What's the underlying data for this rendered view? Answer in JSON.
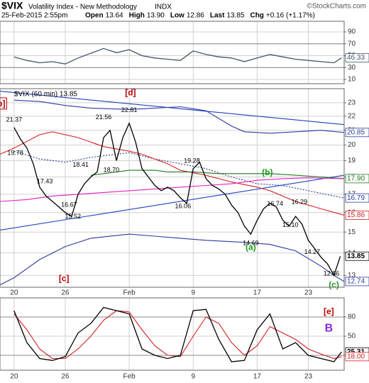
{
  "header": {
    "symbol": "$VIX",
    "title": "Volatility Index - New Methodology",
    "exchange": "INDX",
    "copyright": "©StockCharts.com",
    "date": "25-Feb-2015 2:55pm",
    "quote": [
      [
        "Open",
        "13.64"
      ],
      [
        "High",
        "13.90"
      ],
      [
        "Low",
        "12.86"
      ],
      [
        "Last",
        "13.85"
      ],
      [
        "Chg",
        "+0.16 (+1.17%)"
      ]
    ]
  },
  "chart_data": [
    {
      "type": "line",
      "xlim": [
        -1.1,
        25.8
      ],
      "ylim": [
        2.8,
        107.9
      ],
      "yticks": [
        90,
        70,
        50,
        30,
        10
      ],
      "guides": [
        70,
        30
      ],
      "grid": true,
      "series": [
        {
          "color": "#44546a",
          "x": [
            0,
            1,
            2,
            3,
            4,
            5,
            6,
            7,
            8,
            9,
            10,
            11,
            12,
            13,
            14,
            15,
            16,
            17,
            18,
            19,
            20,
            21,
            22,
            23,
            24,
            25,
            25.6
          ],
          "values": [
            48,
            42,
            38,
            40,
            36,
            46,
            54,
            62,
            55,
            60,
            50,
            46,
            44,
            42,
            58,
            52,
            48,
            46,
            40,
            46,
            52,
            48,
            44,
            42,
            40,
            38,
            46.33
          ]
        }
      ],
      "tags": [
        {
          "value": 46.33,
          "color": "#44546a"
        }
      ]
    },
    {
      "type": "line",
      "log": true,
      "legend": "$VIX (60 min) 13.85",
      "xlim": [
        -1.1,
        25.8
      ],
      "ylim": [
        12.5,
        24.1
      ],
      "yticks": [
        23,
        22,
        21,
        20,
        19,
        18,
        17,
        16,
        15,
        14,
        13
      ],
      "grid": true,
      "xticks": [
        {
          "value": 0,
          "label": "20"
        },
        {
          "value": 4,
          "label": "26"
        },
        {
          "value": 9,
          "label": "Feb"
        },
        {
          "value": 14,
          "label": "9"
        },
        {
          "value": 19,
          "label": "17"
        },
        {
          "value": 23,
          "label": "23"
        }
      ],
      "series": [
        {
          "color": "#1f3fbf",
          "x": [
            -1.1,
            25.8
          ],
          "values": [
            23.9,
            21.4
          ]
        },
        {
          "color": "#1f3fbf",
          "x": [
            -1.1,
            25.8
          ],
          "values": [
            15.1,
            18.1
          ]
        },
        {
          "color": "#2b3aa0",
          "x": [
            0,
            2,
            4,
            6,
            9,
            11,
            13,
            15,
            17,
            18,
            20,
            22,
            24,
            25.8
          ],
          "values": [
            23.2,
            23.1,
            22.8,
            22.6,
            22.5,
            22.6,
            22.7,
            22.4,
            21.3,
            20.9,
            20.8,
            20.9,
            21.0,
            20.85
          ]
        },
        {
          "color": "#2b3aa0",
          "x": [
            -1.1,
            0,
            2,
            4,
            6,
            9,
            11,
            13,
            15,
            18,
            20,
            22,
            24,
            25,
            25.8
          ],
          "values": [
            12.6,
            12.9,
            13.7,
            14.3,
            14.7,
            14.9,
            14.8,
            14.7,
            14.6,
            14.5,
            14.4,
            14.1,
            13.4,
            13.0,
            12.74
          ]
        },
        {
          "color": "#2b3aa0",
          "style": "dotted",
          "x": [
            0,
            2,
            4,
            6,
            9,
            11,
            13,
            15,
            17,
            19,
            21,
            23,
            25.8
          ],
          "values": [
            19.6,
            19.1,
            18.9,
            19.2,
            19.5,
            19.1,
            18.8,
            18.5,
            18.0,
            17.6,
            17.5,
            17.2,
            16.79
          ]
        },
        {
          "color": "#d62020",
          "x": [
            -1.1,
            0,
            2,
            3,
            5,
            7,
            9,
            10,
            12,
            13,
            15,
            17,
            19,
            20,
            22,
            24,
            25.8
          ],
          "values": [
            19.4,
            19.8,
            20.7,
            20.9,
            20.5,
            19.9,
            19.6,
            19.4,
            18.8,
            18.4,
            18.1,
            17.7,
            17.4,
            17.2,
            16.6,
            16.2,
            15.86
          ]
        },
        {
          "color": "#1c7a1c",
          "x": [
            6,
            7,
            9,
            11,
            12,
            14,
            16,
            18,
            20,
            22,
            24,
            25.8
          ],
          "values": [
            18.1,
            18.2,
            18.4,
            18.4,
            18.3,
            18.3,
            18.2,
            18.2,
            18.2,
            18.1,
            18.0,
            17.9
          ]
        },
        {
          "color": "#e020c0",
          "x": [
            -1.1,
            1,
            3,
            5,
            7,
            9,
            11,
            13,
            15,
            17,
            19,
            21,
            23,
            25.8
          ],
          "values": [
            16.6,
            16.7,
            16.9,
            17.0,
            17.1,
            17.2,
            17.3,
            17.4,
            17.5,
            17.6,
            17.8,
            17.9,
            17.95,
            17.9
          ]
        },
        {
          "color": "#000000",
          "x": [
            0,
            0.5,
            1,
            1.5,
            2,
            2.5,
            3,
            3.5,
            4,
            4.5,
            5,
            5.5,
            6,
            6.5,
            7,
            7.5,
            8,
            8.5,
            9,
            9.5,
            10,
            10.5,
            11,
            11.5,
            12,
            12.5,
            13,
            13.5,
            14,
            14.5,
            15,
            15.5,
            16,
            16.5,
            17,
            17.5,
            18,
            18.5,
            19,
            19.5,
            20,
            20.5,
            21,
            21.5,
            22,
            22.5,
            23,
            23.5,
            24,
            24.5,
            25,
            25.5
          ],
          "values": [
            21.2,
            20.4,
            19.8,
            18.8,
            17.4,
            16.9,
            16.6,
            16.3,
            16.0,
            15.8,
            17.0,
            17.6,
            18.0,
            18.3,
            20.5,
            21.0,
            19.0,
            20.5,
            21.5,
            20.2,
            18.5,
            18.0,
            17.5,
            17.2,
            17.4,
            17.2,
            16.8,
            16.5,
            18.5,
            18.9,
            17.9,
            17.5,
            17.3,
            17.0,
            16.4,
            16.0,
            15.3,
            14.9,
            15.6,
            16.2,
            16.5,
            16.3,
            15.6,
            15.3,
            15.8,
            15.4,
            14.6,
            14.2,
            13.8,
            13.5,
            13.0,
            13.85
          ]
        }
      ],
      "point_labels": [
        {
          "x": 0,
          "value": 21.37
        },
        {
          "x": 0.1,
          "value": 19.78
        },
        {
          "x": 7,
          "value": 21.56
        },
        {
          "x": 9,
          "value": 22.81
        },
        {
          "x": 5.2,
          "value": 18.41
        },
        {
          "x": 7.6,
          "value": {
            "value": 18.7,
            "label": "18.70"
          }
        },
        {
          "x": 2.4,
          "value": 17.43
        },
        {
          "x": 4.3,
          "value": 16.67
        },
        {
          "x": 4.6,
          "value": 15.52
        },
        {
          "x": 13.9,
          "value": 19.28
        },
        {
          "x": 13.2,
          "value": 16.06
        },
        {
          "x": 20.4,
          "value": 16.74
        },
        {
          "x": 22.3,
          "value": 16.29
        },
        {
          "x": 18.5,
          "value": 14.69
        },
        {
          "x": 21.6,
          "value": {
            "value": 15.1,
            "label": "15.10"
          }
        },
        {
          "x": 23.3,
          "value": 14.27
        },
        {
          "x": 24.8,
          "value": 12.86
        }
      ],
      "annotations": [
        {
          "text": "b]",
          "x": -1.0,
          "y": 22.9,
          "color": "#c00000",
          "box": true
        },
        {
          "text": "[d]",
          "x": 9.1,
          "y": 23.75,
          "color": "#c00000",
          "box": false
        },
        {
          "text": "[c]",
          "x": 3.9,
          "y": 12.85,
          "color": "#c00000",
          "box": false
        },
        {
          "text": "(b)",
          "x": 19.8,
          "y": 18.25,
          "color": "#1c9a1c",
          "box": false
        },
        {
          "text": "(a)",
          "x": 18.5,
          "y": 14.25,
          "color": "#1c9a1c",
          "box": false
        },
        {
          "text": "(c)",
          "x": 25.0,
          "y": 12.58,
          "color": "#1c9a1c",
          "box": false
        }
      ],
      "tags": [
        {
          "value": 20.85,
          "color": "#2b3aa0"
        },
        {
          "value": {
            "value": 17.9,
            "label": "17.90"
          },
          "color": "#1c7a1c"
        },
        {
          "value": 16.79,
          "color": "#2b3aa0"
        },
        {
          "value": 15.86,
          "color": "#d62020"
        },
        {
          "value": 13.85,
          "color": "#000000"
        },
        {
          "value": 12.74,
          "color": "#2b3aa0"
        }
      ]
    },
    {
      "type": "line",
      "xlim": [
        -1.1,
        25.8
      ],
      "ylim": [
        -3.3,
        110
      ],
      "yticks": [
        80,
        50,
        20
      ],
      "guides": [
        80,
        20
      ],
      "grid": true,
      "xticks": [
        {
          "value": 0,
          "label": "20"
        },
        {
          "value": 4,
          "label": "26"
        },
        {
          "value": 9,
          "label": "Feb"
        },
        {
          "value": 14,
          "label": "9"
        },
        {
          "value": 19,
          "label": "17"
        },
        {
          "value": 23,
          "label": "23"
        }
      ],
      "series": [
        {
          "color": "#d62020",
          "x": [
            0,
            1,
            2,
            3,
            4,
            5,
            6,
            7,
            8,
            9,
            10,
            11,
            12,
            13,
            14,
            15,
            16,
            17,
            18,
            19,
            20,
            21,
            22,
            23,
            24,
            25,
            25.6
          ],
          "values": [
            85,
            60,
            30,
            15,
            15,
            30,
            50,
            75,
            90,
            88,
            60,
            35,
            20,
            18,
            50,
            80,
            70,
            40,
            20,
            35,
            65,
            55,
            45,
            30,
            22,
            15,
            18
          ]
        },
        {
          "color": "#000000",
          "x": [
            0,
            1,
            2,
            3,
            4,
            5,
            6,
            7,
            8,
            9,
            10,
            11,
            12,
            13,
            14,
            15,
            16,
            17,
            18,
            19,
            20,
            21,
            22,
            23,
            24,
            25,
            25.6
          ],
          "values": [
            90,
            40,
            15,
            12,
            18,
            55,
            70,
            95,
            90,
            85,
            30,
            20,
            15,
            20,
            90,
            92,
            45,
            10,
            12,
            60,
            85,
            30,
            40,
            20,
            15,
            10,
            25.31
          ]
        }
      ],
      "annotations": [
        {
          "text": "[e]",
          "x": 24.6,
          "y": 88,
          "color": "#c00000",
          "box": false
        },
        {
          "text": "B",
          "x": 24.6,
          "y": 62,
          "color": "#8a2be2",
          "box": false,
          "big": true
        }
      ],
      "tags": [
        {
          "value": 25.31,
          "color": "#000000"
        },
        {
          "value": {
            "value": 18,
            "label": "18.00"
          },
          "color": "#d62020"
        }
      ]
    }
  ]
}
